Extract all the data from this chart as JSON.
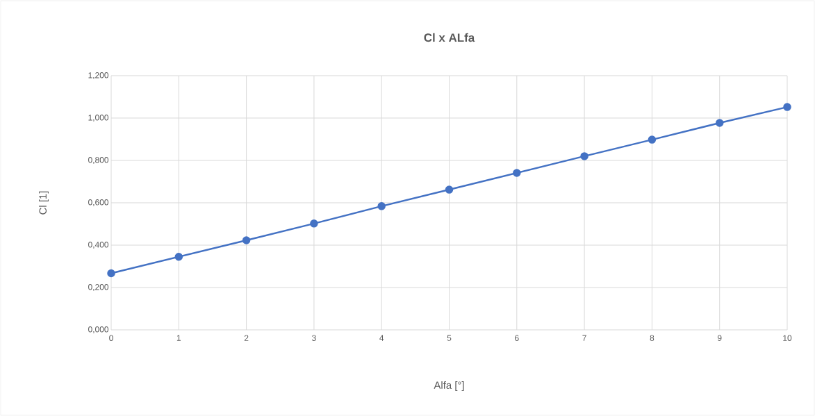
{
  "chart_data": {
    "type": "line",
    "title": "Cl x ALfa",
    "xlabel": "Alfa [°]",
    "ylabel": "Cl [1]",
    "x": [
      0,
      1,
      2,
      3,
      4,
      5,
      6,
      7,
      8,
      9,
      10
    ],
    "series": [
      {
        "color": "#4472c4",
        "values": [
          0.267,
          0.345,
          0.423,
          0.502,
          0.584,
          0.662,
          0.741,
          0.82,
          0.898,
          0.977,
          1.052
        ]
      }
    ],
    "xlim": [
      0,
      10
    ],
    "ylim": [
      0,
      1.2
    ],
    "xticks": [
      0,
      1,
      2,
      3,
      4,
      5,
      6,
      7,
      8,
      9,
      10
    ],
    "yticks": [
      {
        "value": 0,
        "label": "0,000"
      },
      {
        "value": 0.2,
        "label": "0,200"
      },
      {
        "value": 0.4,
        "label": "0,400"
      },
      {
        "value": 0.6,
        "label": "0,600"
      },
      {
        "value": 0.8,
        "label": "0,800"
      },
      {
        "value": 1.0,
        "label": "1,000"
      },
      {
        "value": 1.2,
        "label": "1,200"
      }
    ],
    "grid": true,
    "marker": "circle",
    "line_style": "solid"
  }
}
